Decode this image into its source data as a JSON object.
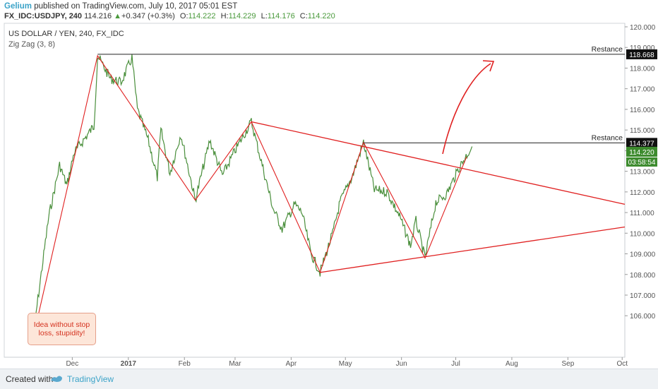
{
  "header": {
    "author": "Gelium",
    "published": "published on TradingView.com, July 10, 2017 05:01 EST",
    "symbol": "FX_IDC:USDJPY, 240",
    "last": "114.216",
    "change_arrow": "▲",
    "change": "+0.347 (+0.3%)",
    "o_label": "O:",
    "o_value": "114.222",
    "h_label": "H:",
    "h_value": "114.229",
    "l_label": "L:",
    "l_value": "114.176",
    "c_label": "C:",
    "c_value": "114.220"
  },
  "chart_data": {
    "type": "line",
    "title": "US DOLLAR / YEN, 240, FX_IDC",
    "indicator": "Zig Zag (3, 8)",
    "y_ticks": [
      "120.000",
      "119.000",
      "118.000",
      "117.000",
      "116.000",
      "115.000",
      "114.000",
      "113.000",
      "112.000",
      "111.000",
      "110.000",
      "109.000",
      "108.000",
      "107.000",
      "106.000"
    ],
    "x_ticks": [
      "Dec",
      "2017",
      "Feb",
      "Mar",
      "Apr",
      "May",
      "Jun",
      "Jul",
      "Aug",
      "Sep",
      "Oct"
    ],
    "ylim": [
      105.8,
      120.2
    ],
    "price_series": {
      "name": "USDJPY",
      "color": "#4a8f3c",
      "points": [
        {
          "x": "2016-11-09",
          "y": 104.8
        },
        {
          "x": "2016-11-12",
          "y": 106.8
        },
        {
          "x": "2016-11-18",
          "y": 110.8
        },
        {
          "x": "2016-11-24",
          "y": 113.3
        },
        {
          "x": "2016-11-28",
          "y": 112.3
        },
        {
          "x": "2016-12-02",
          "y": 113.9
        },
        {
          "x": "2016-12-08",
          "y": 114.6
        },
        {
          "x": "2016-12-13",
          "y": 115.2
        },
        {
          "x": "2016-12-15",
          "y": 118.6
        },
        {
          "x": "2016-12-22",
          "y": 117.5
        },
        {
          "x": "2016-12-28",
          "y": 117.3
        },
        {
          "x": "2017-01-03",
          "y": 118.5
        },
        {
          "x": "2017-01-06",
          "y": 116.0
        },
        {
          "x": "2017-01-12",
          "y": 114.5
        },
        {
          "x": "2017-01-17",
          "y": 112.7
        },
        {
          "x": "2017-01-19",
          "y": 115.0
        },
        {
          "x": "2017-01-24",
          "y": 112.9
        },
        {
          "x": "2017-01-30",
          "y": 114.8
        },
        {
          "x": "2017-02-07",
          "y": 111.6
        },
        {
          "x": "2017-02-15",
          "y": 114.5
        },
        {
          "x": "2017-02-22",
          "y": 112.8
        },
        {
          "x": "2017-03-01",
          "y": 114.0
        },
        {
          "x": "2017-03-10",
          "y": 115.4
        },
        {
          "x": "2017-03-16",
          "y": 113.3
        },
        {
          "x": "2017-03-22",
          "y": 111.2
        },
        {
          "x": "2017-03-27",
          "y": 110.2
        },
        {
          "x": "2017-04-03",
          "y": 111.4
        },
        {
          "x": "2017-04-07",
          "y": 111.0
        },
        {
          "x": "2017-04-12",
          "y": 109.0
        },
        {
          "x": "2017-04-17",
          "y": 108.1
        },
        {
          "x": "2017-04-24",
          "y": 110.0
        },
        {
          "x": "2017-04-28",
          "y": 111.5
        },
        {
          "x": "2017-05-05",
          "y": 112.8
        },
        {
          "x": "2017-05-11",
          "y": 114.4
        },
        {
          "x": "2017-05-17",
          "y": 112.1
        },
        {
          "x": "2017-05-24",
          "y": 112.0
        },
        {
          "x": "2017-05-31",
          "y": 110.8
        },
        {
          "x": "2017-06-06",
          "y": 109.4
        },
        {
          "x": "2017-06-09",
          "y": 110.6
        },
        {
          "x": "2017-06-14",
          "y": 108.8
        },
        {
          "x": "2017-06-20",
          "y": 111.5
        },
        {
          "x": "2017-06-26",
          "y": 111.9
        },
        {
          "x": "2017-07-03",
          "y": 113.2
        },
        {
          "x": "2017-07-10",
          "y": 114.2
        }
      ]
    },
    "zigzag": {
      "color": "#e02020",
      "points": [
        {
          "x": "2016-11-09",
          "y": 104.8
        },
        {
          "x": "2016-12-15",
          "y": 118.6
        },
        {
          "x": "2017-02-07",
          "y": 111.6
        },
        {
          "x": "2017-03-10",
          "y": 115.4
        },
        {
          "x": "2017-04-17",
          "y": 108.1
        },
        {
          "x": "2017-05-11",
          "y": 114.4
        },
        {
          "x": "2017-06-14",
          "y": 108.8
        },
        {
          "x": "2017-07-07",
          "y": 113.7
        }
      ]
    },
    "trendlines": [
      {
        "from": {
          "x": "2017-03-10",
          "y": 115.4
        },
        "to": {
          "x": "2017-10-31",
          "y": 111.4
        },
        "color": "#e02020"
      },
      {
        "from": {
          "x": "2017-04-17",
          "y": 108.1
        },
        "to": {
          "x": "2017-10-31",
          "y": 110.3
        },
        "color": "#e02020"
      }
    ],
    "resistance_levels": [
      {
        "label": "Restance",
        "price": "118.668",
        "from_x": "2016-12-15"
      },
      {
        "label": "Restance",
        "price": "114.377",
        "from_x": "2017-05-11"
      }
    ],
    "price_labels": {
      "last": "114.220",
      "timer": "03:58:54"
    },
    "annotation": "Idea without stop loss, stupidity!"
  },
  "footer": {
    "created_with": "Created with",
    "brand": "TradingView"
  }
}
